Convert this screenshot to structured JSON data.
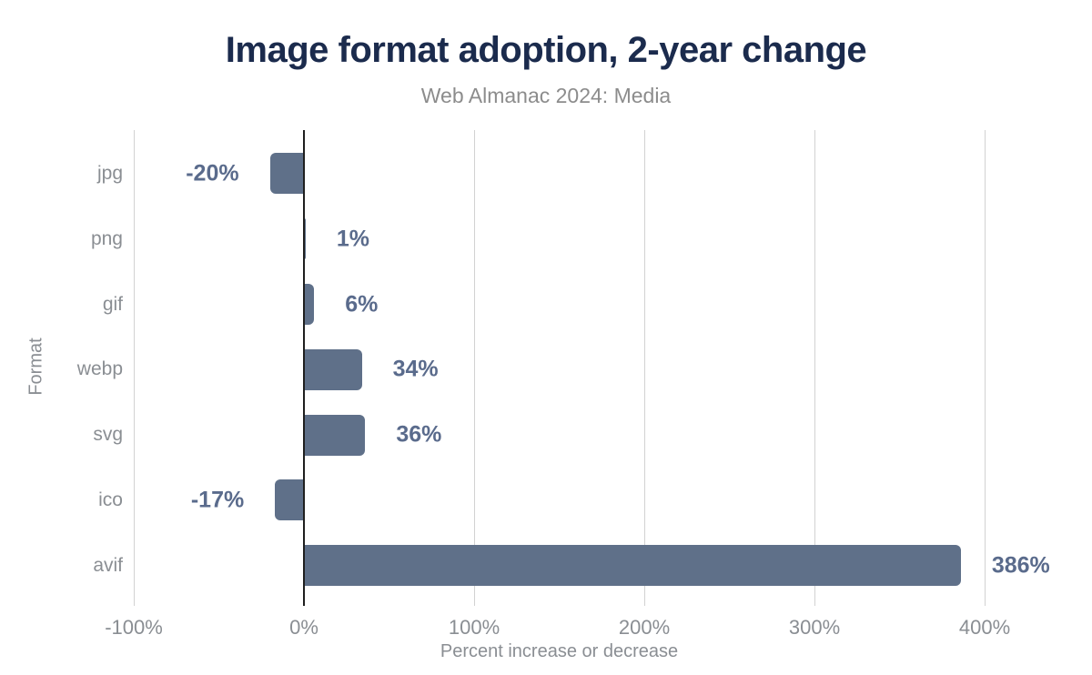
{
  "chart_data": {
    "type": "bar",
    "orientation": "horizontal",
    "title": "Image format adoption, 2-year change",
    "subtitle": "Web Almanac 2024: Media",
    "xlabel": "Percent increase or decrease",
    "ylabel": "Format",
    "categories": [
      "jpg",
      "png",
      "gif",
      "webp",
      "svg",
      "ico",
      "avif"
    ],
    "values": [
      -20,
      1,
      6,
      34,
      36,
      -17,
      386
    ],
    "value_labels": [
      "-20%",
      "1%",
      "6%",
      "34%",
      "36%",
      "-17%",
      "386%"
    ],
    "xlim": [
      -100,
      400
    ],
    "xticks": [
      -100,
      0,
      100,
      200,
      300,
      400
    ],
    "xtick_labels": [
      "-100%",
      "0%",
      "100%",
      "200%",
      "300%",
      "400%"
    ],
    "grid": "vertical",
    "legend": "none",
    "colors": {
      "bar": "#5f7089",
      "value_label": "#5a6b8c",
      "title": "#1b2b4d",
      "subtitle": "#8c8c8c",
      "axis_text": "#8a8e93",
      "gridline": "#d2d2d2",
      "zero_line": "#1f1f1f",
      "background": "#ffffff"
    }
  }
}
